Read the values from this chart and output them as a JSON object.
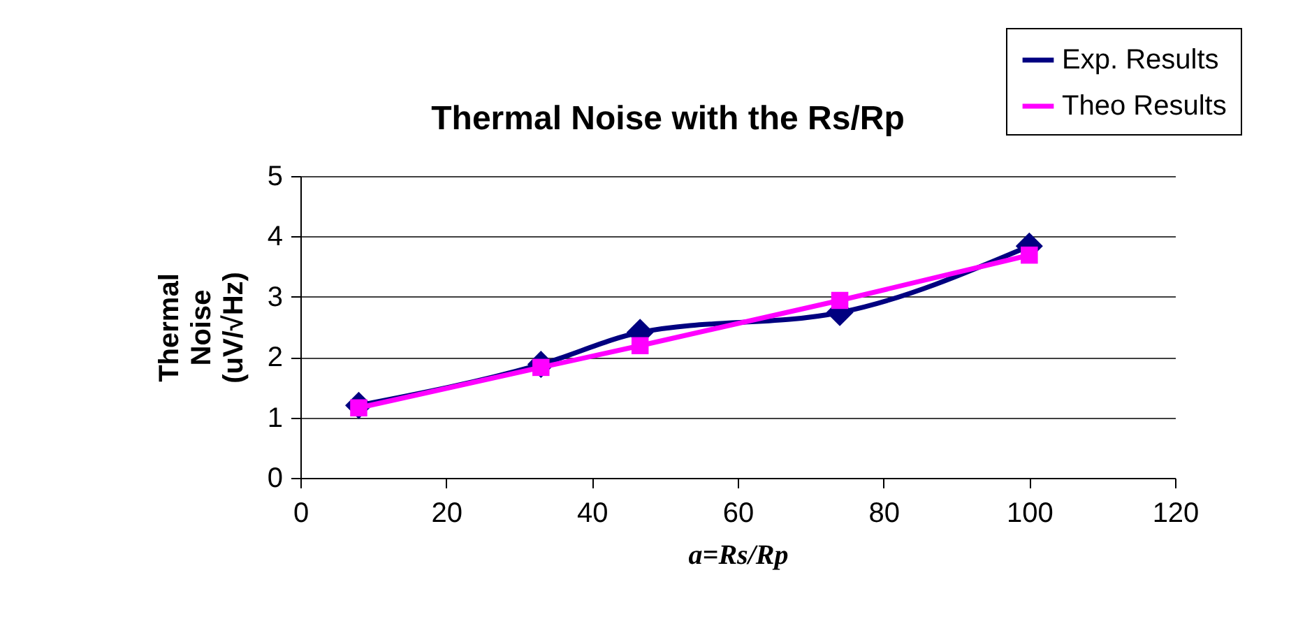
{
  "chart_data": {
    "type": "line",
    "title": "Thermal Noise with the Rs/Rp",
    "xlabel": "a=Rs/Rp",
    "ylabel": "Thermal Noise (uV/√Hz)",
    "x": [
      8,
      33,
      46.6,
      74,
      100
    ],
    "series": [
      {
        "name": "Exp. Results",
        "color": "#000080",
        "marker": "diamond",
        "values": [
          1.2,
          1.88,
          2.41,
          2.74,
          3.84
        ]
      },
      {
        "name": "Theo Results",
        "color": "#ff00ff",
        "marker": "square",
        "values": [
          1.16,
          1.83,
          2.19,
          2.94,
          3.69
        ]
      }
    ],
    "xlim": [
      0,
      120
    ],
    "xticks": [
      0,
      20,
      40,
      60,
      80,
      100,
      120
    ],
    "ylim": [
      0,
      5
    ],
    "yticks": [
      0,
      1,
      2,
      3,
      4,
      5
    ],
    "grid": "y",
    "legend": "top right",
    "line_style": "solid"
  }
}
